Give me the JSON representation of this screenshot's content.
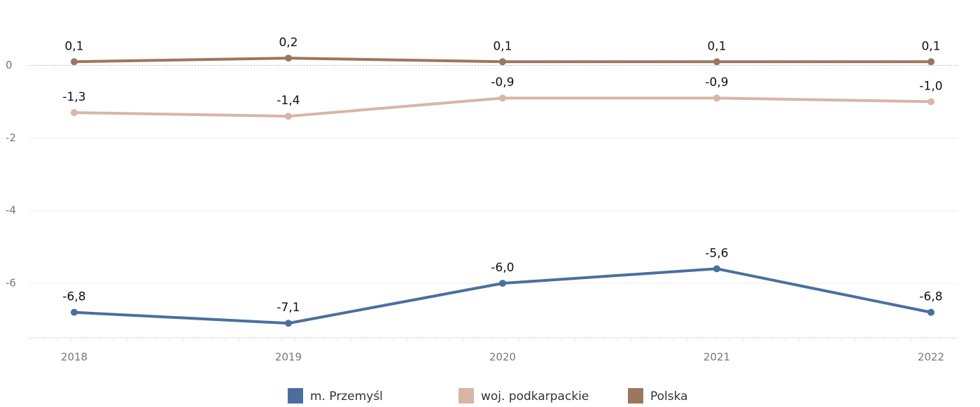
{
  "chart_data": {
    "type": "line",
    "categories": [
      "2018",
      "2019",
      "2020",
      "2021",
      "2022"
    ],
    "series": [
      {
        "name": "m. Przemyśl",
        "color": "#4a6f9e",
        "values": [
          -6.8,
          -7.1,
          -6.0,
          -5.6,
          -6.8
        ],
        "value_labels": [
          "-6,8",
          "-7,1",
          "-6,0",
          "-5,6",
          "-6,8"
        ]
      },
      {
        "name": "woj. podkarpackie",
        "color": "#d6b6a6",
        "values": [
          -1.3,
          -1.4,
          -0.9,
          -0.9,
          -1.0
        ],
        "value_labels": [
          "-1,3",
          "-1,4",
          "-0,9",
          "-0,9",
          "-1,0"
        ]
      },
      {
        "name": "Polska",
        "color": "#9c765f",
        "values": [
          0.1,
          0.2,
          0.1,
          0.1,
          0.1
        ],
        "value_labels": [
          "0,1",
          "0,2",
          "0,1",
          "0,1",
          "0,1"
        ]
      }
    ],
    "ylim": [
      -7.5,
      1.8
    ],
    "yticks": [
      0,
      -2,
      -4,
      -6
    ],
    "grid": true
  }
}
